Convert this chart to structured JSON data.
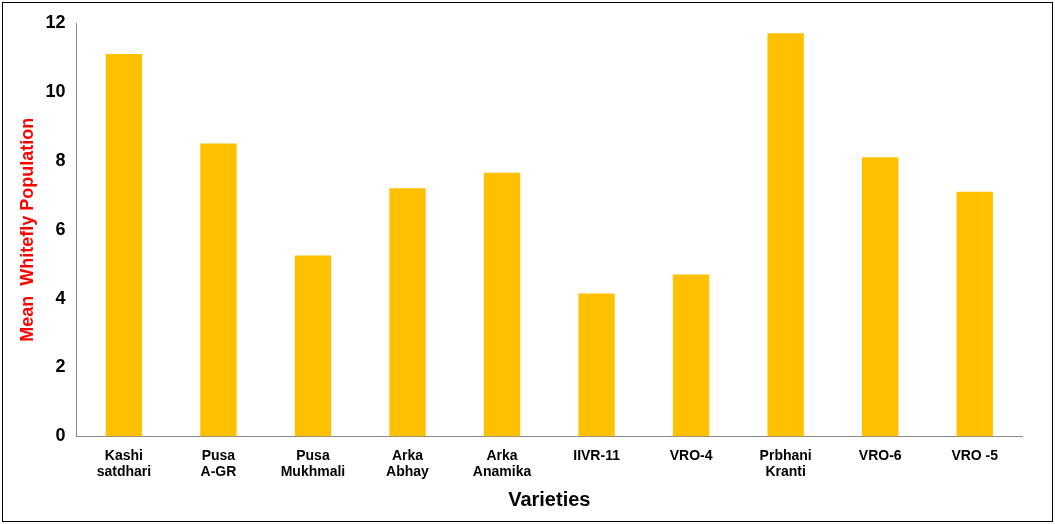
{
  "chart_data": {
    "type": "bar",
    "xlabel": "Varieties",
    "ylabel": "Mean  Whitefly Population",
    "categories": [
      "Kashi satdhari",
      "Pusa A-GR",
      "Pusa Mukhmali",
      "Arka Abhay",
      "Arka Anamika",
      "IIVR-11",
      "VRO-4",
      "Prbhani Kranti",
      "VRO-6",
      "VRO -5"
    ],
    "values": [
      11.1,
      8.5,
      5.25,
      7.2,
      7.65,
      4.15,
      4.7,
      11.7,
      8.1,
      7.1
    ],
    "color": "#ffc000",
    "ylim": [
      0,
      12
    ],
    "yticks": [
      0,
      2,
      4,
      6,
      8,
      10,
      12
    ],
    "grid": false,
    "legend": false
  }
}
